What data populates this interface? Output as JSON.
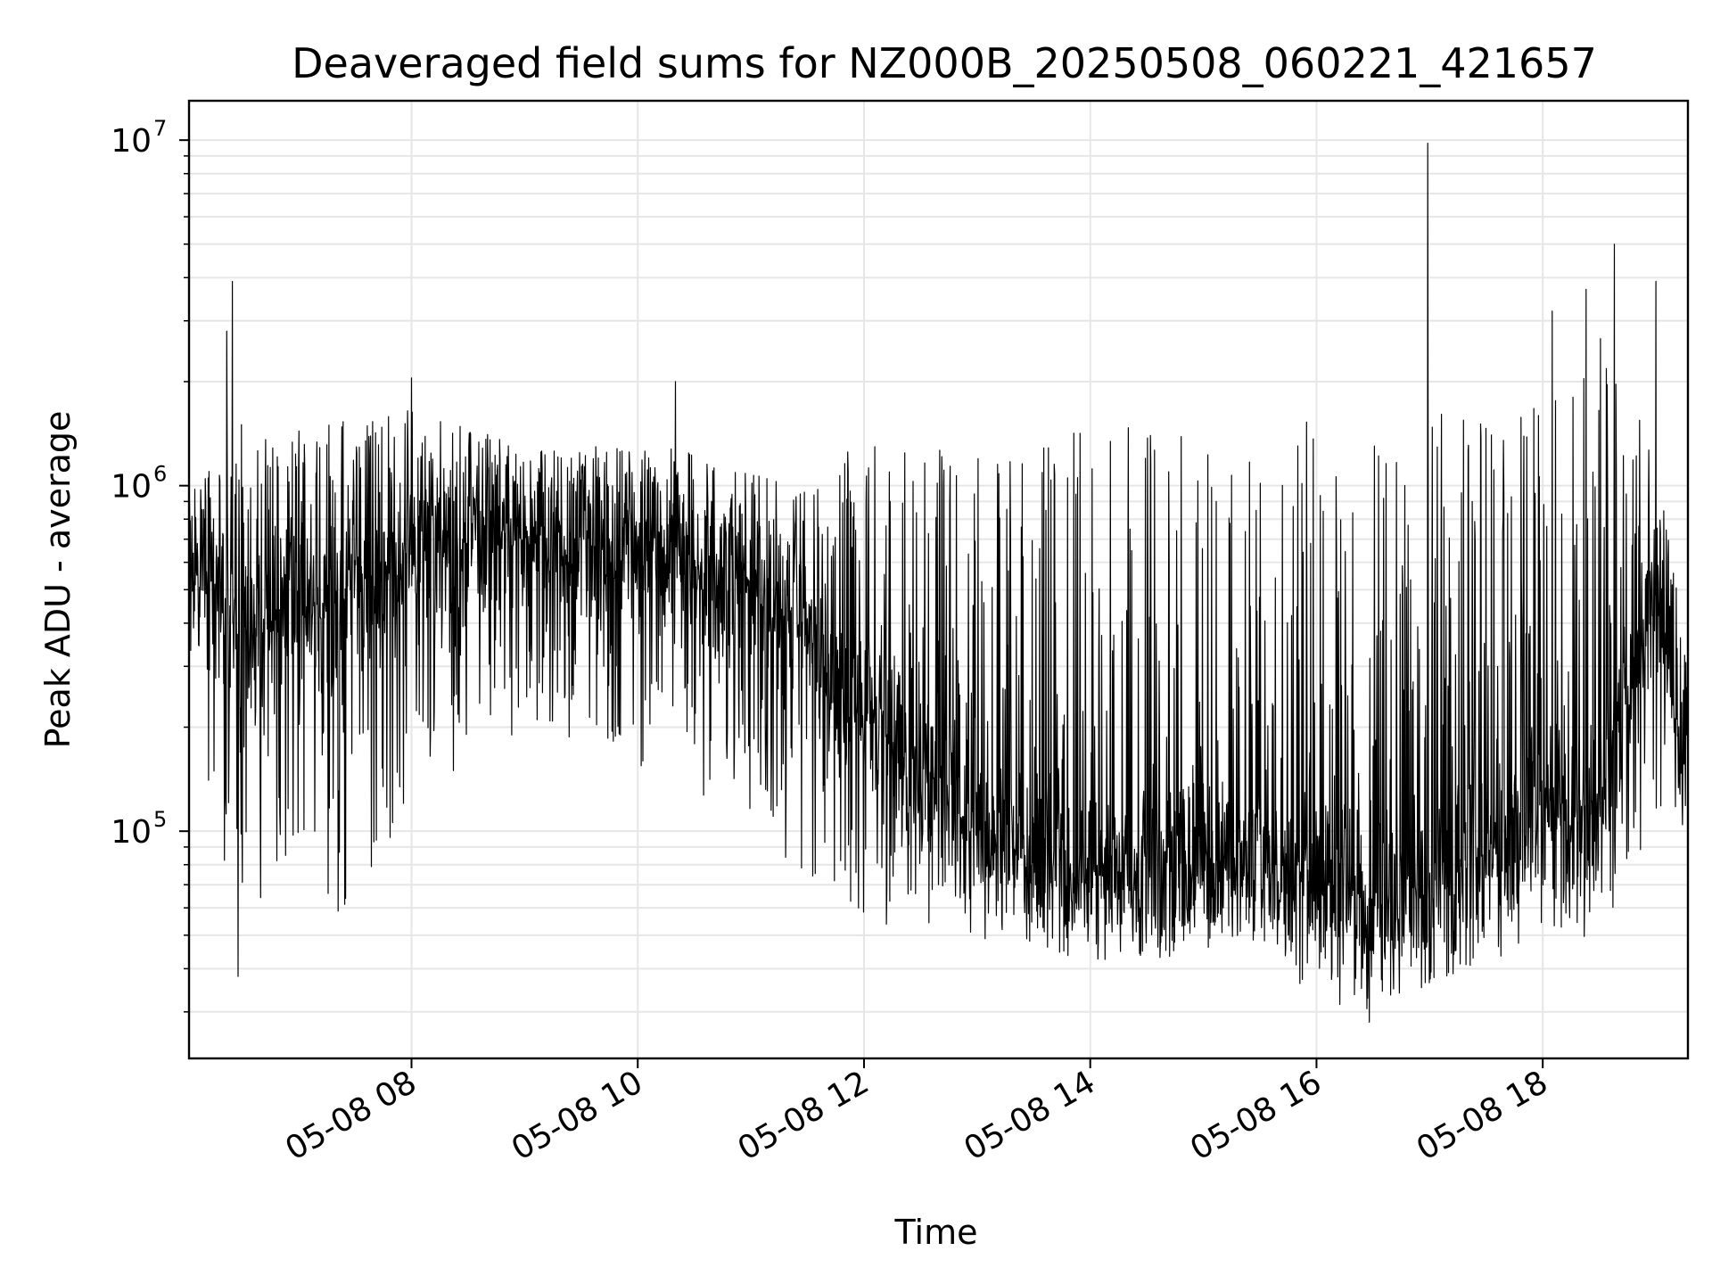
{
  "chart_data": {
    "type": "line",
    "title": "Deaveraged field sums for NZ000B_20250508_060221_421657",
    "xlabel": "Time",
    "ylabel": "Peak ADU - average",
    "yscale": "log",
    "ylim": [
      22000,
      13000000
    ],
    "xlim": [
      "2025-05-08 06:02",
      "2025-05-08 19:17"
    ],
    "x_ticks": [
      {
        "t": "2025-05-08 08:00",
        "label": "05-08 08"
      },
      {
        "t": "2025-05-08 10:00",
        "label": "05-08 10"
      },
      {
        "t": "2025-05-08 12:00",
        "label": "05-08 12"
      },
      {
        "t": "2025-05-08 14:00",
        "label": "05-08 14"
      },
      {
        "t": "2025-05-08 16:00",
        "label": "05-08 16"
      },
      {
        "t": "2025-05-08 18:00",
        "label": "05-08 18"
      }
    ],
    "y_ticks": [
      {
        "value": 100000,
        "base": "10",
        "exp": "5"
      },
      {
        "value": 1000000,
        "base": "10",
        "exp": "6"
      },
      {
        "value": 10000000,
        "base": "10",
        "exp": "7"
      }
    ],
    "grid": true,
    "line_color": "#000000",
    "series": [
      {
        "x": [
          "2025-05-08 06:02",
          "2025-05-08 06:20",
          "2025-05-08 06:40",
          "2025-05-08 07:00",
          "2025-05-08 07:20",
          "2025-05-08 07:40",
          "2025-05-08 08:00",
          "2025-05-08 08:30",
          "2025-05-08 09:00",
          "2025-05-08 09:30",
          "2025-05-08 10:00",
          "2025-05-08 10:30",
          "2025-05-08 11:00",
          "2025-05-08 11:30",
          "2025-05-08 12:00",
          "2025-05-08 12:30",
          "2025-05-08 13:00",
          "2025-05-08 13:30",
          "2025-05-08 14:00",
          "2025-05-08 14:30",
          "2025-05-08 15:00",
          "2025-05-08 15:30",
          "2025-05-08 16:00",
          "2025-05-08 16:30",
          "2025-05-08 17:00",
          "2025-05-08 17:30",
          "2025-05-08 18:00",
          "2025-05-08 18:30",
          "2025-05-08 19:00",
          "2025-05-08 19:17"
        ],
        "median": [
          550000,
          420000,
          380000,
          420000,
          450000,
          500000,
          620000,
          680000,
          700000,
          680000,
          620000,
          580000,
          520000,
          380000,
          220000,
          140000,
          100000,
          82000,
          78000,
          80000,
          82000,
          82000,
          75000,
          60000,
          70000,
          90000,
          100000,
          120000,
          500000,
          120000
        ],
        "low": [
          300000,
          80000,
          60000,
          60000,
          55000,
          60000,
          140000,
          150000,
          200000,
          170000,
          150000,
          130000,
          110000,
          70000,
          55000,
          52000,
          48000,
          45000,
          42000,
          42000,
          45000,
          45000,
          32000,
          29000,
          36000,
          42000,
          45000,
          48000,
          110000,
          110000
        ],
        "high": [
          900000,
          1600000,
          1500000,
          1500000,
          1600000,
          1600000,
          1700000,
          1500000,
          1300000,
          1300000,
          1300000,
          1300000,
          1100000,
          1000000,
          1400000,
          1400000,
          1200000,
          1400000,
          1500000,
          1500000,
          1500000,
          1500000,
          1600000,
          1400000,
          1700000,
          1600000,
          1700000,
          2800000,
          1300000,
          300000
        ],
        "spikes": [
          {
            "t": "2025-05-08 06:22",
            "v": 2800000
          },
          {
            "t": "2025-05-08 06:25",
            "v": 3900000
          },
          {
            "t": "2025-05-08 06:28",
            "v": 38000
          },
          {
            "t": "2025-05-08 08:00",
            "v": 2050000
          },
          {
            "t": "2025-05-08 10:20",
            "v": 2000000
          },
          {
            "t": "2025-05-08 16:59",
            "v": 9800000
          },
          {
            "t": "2025-05-08 16:28",
            "v": 28000
          },
          {
            "t": "2025-05-08 18:05",
            "v": 3200000
          },
          {
            "t": "2025-05-08 18:23",
            "v": 3700000
          },
          {
            "t": "2025-05-08 18:38",
            "v": 5000000
          },
          {
            "t": "2025-05-08 19:00",
            "v": 3900000
          }
        ]
      }
    ]
  }
}
